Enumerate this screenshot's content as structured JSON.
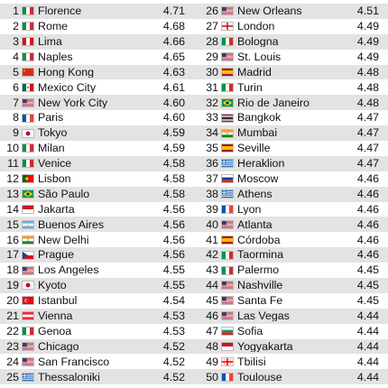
{
  "rankings": [
    {
      "rank": "1",
      "city": "Florence",
      "score": "4.71",
      "flag": "italy-flag-icon",
      "country": "IT"
    },
    {
      "rank": "2",
      "city": "Rome",
      "score": "4.68",
      "flag": "italy-flag-icon",
      "country": "IT"
    },
    {
      "rank": "3",
      "city": "Lima",
      "score": "4.66",
      "flag": "peru-flag-icon",
      "country": "PE"
    },
    {
      "rank": "4",
      "city": "Naples",
      "score": "4.65",
      "flag": "italy-flag-icon",
      "country": "IT"
    },
    {
      "rank": "5",
      "city": "Hong Kong",
      "score": "4.63",
      "flag": "china-flag-icon",
      "country": "CN"
    },
    {
      "rank": "6",
      "city": "Mexico City",
      "score": "4.61",
      "flag": "mexico-flag-icon",
      "country": "MX"
    },
    {
      "rank": "7",
      "city": "New York City",
      "score": "4.60",
      "flag": "usa-flag-icon",
      "country": "US"
    },
    {
      "rank": "8",
      "city": "Paris",
      "score": "4.60",
      "flag": "france-flag-icon",
      "country": "FR"
    },
    {
      "rank": "9",
      "city": "Tokyo",
      "score": "4.59",
      "flag": "japan-flag-icon",
      "country": "JP"
    },
    {
      "rank": "10",
      "city": "Milan",
      "score": "4.59",
      "flag": "italy-flag-icon",
      "country": "IT"
    },
    {
      "rank": "11",
      "city": "Venice",
      "score": "4.58",
      "flag": "italy-flag-icon",
      "country": "IT"
    },
    {
      "rank": "12",
      "city": "Lisbon",
      "score": "4.58",
      "flag": "portugal-flag-icon",
      "country": "PT"
    },
    {
      "rank": "13",
      "city": "São Paulo",
      "score": "4.58",
      "flag": "brazil-flag-icon",
      "country": "BR"
    },
    {
      "rank": "14",
      "city": "Jakarta",
      "score": "4.56",
      "flag": "indonesia-flag-icon",
      "country": "ID"
    },
    {
      "rank": "15",
      "city": "Buenos Aires",
      "score": "4.56",
      "flag": "argentina-flag-icon",
      "country": "AR"
    },
    {
      "rank": "16",
      "city": "New Delhi",
      "score": "4.56",
      "flag": "india-flag-icon",
      "country": "IN"
    },
    {
      "rank": "17",
      "city": "Prague",
      "score": "4.56",
      "flag": "czechia-flag-icon",
      "country": "CZ"
    },
    {
      "rank": "18",
      "city": "Los Angeles",
      "score": "4.55",
      "flag": "usa-flag-icon",
      "country": "US"
    },
    {
      "rank": "19",
      "city": "Kyoto",
      "score": "4.55",
      "flag": "japan-flag-icon",
      "country": "JP"
    },
    {
      "rank": "20",
      "city": "Istanbul",
      "score": "4.54",
      "flag": "turkey-flag-icon",
      "country": "TR"
    },
    {
      "rank": "21",
      "city": "Vienna",
      "score": "4.53",
      "flag": "austria-flag-icon",
      "country": "AT"
    },
    {
      "rank": "22",
      "city": "Genoa",
      "score": "4.53",
      "flag": "italy-flag-icon",
      "country": "IT"
    },
    {
      "rank": "23",
      "city": "Chicago",
      "score": "4.52",
      "flag": "usa-flag-icon",
      "country": "US"
    },
    {
      "rank": "24",
      "city": "San Francisco",
      "score": "4.52",
      "flag": "usa-flag-icon",
      "country": "US"
    },
    {
      "rank": "25",
      "city": "Thessaloniki",
      "score": "4.52",
      "flag": "greece-flag-icon",
      "country": "GR"
    },
    {
      "rank": "26",
      "city": "New Orleans",
      "score": "4.51",
      "flag": "usa-flag-icon",
      "country": "US"
    },
    {
      "rank": "27",
      "city": "London",
      "score": "4.49",
      "flag": "england-flag-icon",
      "country": "EN"
    },
    {
      "rank": "28",
      "city": "Bologna",
      "score": "4.49",
      "flag": "italy-flag-icon",
      "country": "IT"
    },
    {
      "rank": "29",
      "city": "St. Louis",
      "score": "4.49",
      "flag": "usa-flag-icon",
      "country": "US"
    },
    {
      "rank": "30",
      "city": "Madrid",
      "score": "4.48",
      "flag": "spain-flag-icon",
      "country": "ES"
    },
    {
      "rank": "31",
      "city": "Turin",
      "score": "4.48",
      "flag": "italy-flag-icon",
      "country": "IT"
    },
    {
      "rank": "32",
      "city": "Rio de Janeiro",
      "score": "4.48",
      "flag": "brazil-flag-icon",
      "country": "BR"
    },
    {
      "rank": "33",
      "city": "Bangkok",
      "score": "4.47",
      "flag": "thailand-flag-icon",
      "country": "TH"
    },
    {
      "rank": "34",
      "city": "Mumbai",
      "score": "4.47",
      "flag": "india-flag-icon",
      "country": "IN"
    },
    {
      "rank": "35",
      "city": "Seville",
      "score": "4.47",
      "flag": "spain-flag-icon",
      "country": "ES"
    },
    {
      "rank": "36",
      "city": "Heraklion",
      "score": "4.47",
      "flag": "greece-flag-icon",
      "country": "GR"
    },
    {
      "rank": "37",
      "city": "Moscow",
      "score": "4.46",
      "flag": "russia-flag-icon",
      "country": "RU"
    },
    {
      "rank": "38",
      "city": "Athens",
      "score": "4.46",
      "flag": "greece-flag-icon",
      "country": "GR"
    },
    {
      "rank": "39",
      "city": "Lyon",
      "score": "4.46",
      "flag": "france-flag-icon",
      "country": "FR"
    },
    {
      "rank": "40",
      "city": "Atlanta",
      "score": "4.46",
      "flag": "usa-flag-icon",
      "country": "US"
    },
    {
      "rank": "41",
      "city": "Córdoba",
      "score": "4.46",
      "flag": "spain-flag-icon",
      "country": "ES"
    },
    {
      "rank": "42",
      "city": "Taormina",
      "score": "4.46",
      "flag": "italy-flag-icon",
      "country": "IT"
    },
    {
      "rank": "43",
      "city": "Palermo",
      "score": "4.45",
      "flag": "italy-flag-icon",
      "country": "IT"
    },
    {
      "rank": "44",
      "city": "Nashville",
      "score": "4.45",
      "flag": "usa-flag-icon",
      "country": "US"
    },
    {
      "rank": "45",
      "city": "Santa Fe",
      "score": "4.45",
      "flag": "usa-flag-icon",
      "country": "US"
    },
    {
      "rank": "46",
      "city": "Las Vegas",
      "score": "4.44",
      "flag": "usa-flag-icon",
      "country": "US"
    },
    {
      "rank": "47",
      "city": "Sofia",
      "score": "4.44",
      "flag": "bulgaria-flag-icon",
      "country": "BG"
    },
    {
      "rank": "48",
      "city": "Yogyakarta",
      "score": "4.44",
      "flag": "indonesia-flag-icon",
      "country": "ID"
    },
    {
      "rank": "49",
      "city": "Tbilisi",
      "score": "4.44",
      "flag": "georgia-flag-icon",
      "country": "GE"
    },
    {
      "rank": "50",
      "city": "Toulouse",
      "score": "4.44",
      "flag": "france-flag-icon",
      "country": "FR"
    }
  ],
  "colors": {
    "stripe": "#e3e3e3",
    "background": "#ffffff",
    "text": "#111111"
  }
}
